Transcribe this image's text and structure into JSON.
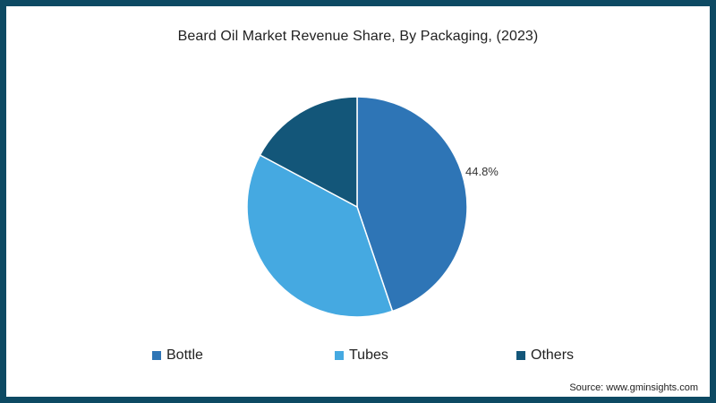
{
  "chart_data": {
    "type": "pie",
    "title": "Beard Oil Market Revenue Share, By Packaging, (2023)",
    "categories": [
      "Bottle",
      "Tubes",
      "Others"
    ],
    "values": [
      44.8,
      38.0,
      17.2
    ],
    "colors": [
      "#2e75b6",
      "#45a9e1",
      "#135679"
    ],
    "labels_shown": {
      "Bottle": "44.8%"
    },
    "start_angle_deg": 0,
    "direction": "clockwise",
    "legend_position": "bottom"
  },
  "title": "Beard Oil Market Revenue Share, By Packaging, (2023)",
  "data_label": "44.8%",
  "legend": [
    {
      "label": "Bottle",
      "color": "#2e75b6"
    },
    {
      "label": "Tubes",
      "color": "#45a9e1"
    },
    {
      "label": "Others",
      "color": "#135679"
    }
  ],
  "source": "Source: www.gminsights.com",
  "colors": {
    "frame": "#0d4a63",
    "background": "#ffffff"
  }
}
